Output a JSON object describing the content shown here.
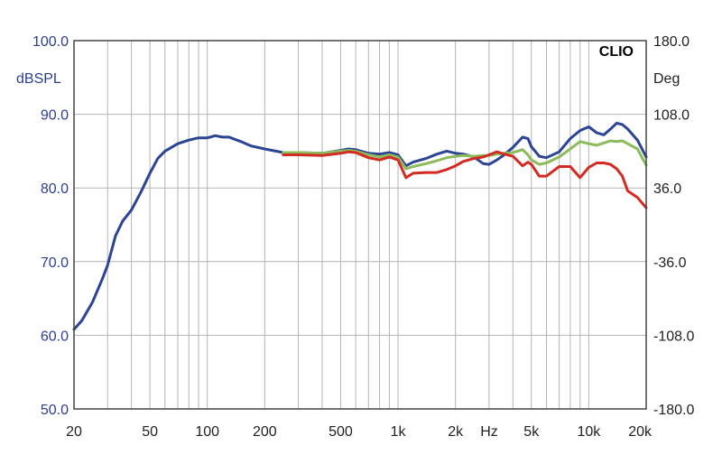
{
  "chart_data": {
    "type": "line",
    "brand": "CLIO",
    "xscale": "log",
    "xlim": [
      20,
      20000
    ],
    "xlabel": "Hz",
    "x_ticks": [
      {
        "value": 20,
        "label": "20"
      },
      {
        "value": 50,
        "label": "50"
      },
      {
        "value": 100,
        "label": "100"
      },
      {
        "value": 200,
        "label": "200"
      },
      {
        "value": 500,
        "label": "500"
      },
      {
        "value": 1000,
        "label": "1k"
      },
      {
        "value": 2000,
        "label": "2k"
      },
      {
        "value": 5000,
        "label": "5k"
      },
      {
        "value": 10000,
        "label": "10k"
      },
      {
        "value": 20000,
        "label": "20k"
      }
    ],
    "ylabel": "dBSPL",
    "ylim": [
      50,
      100
    ],
    "y_ticks": [
      "100.0",
      "90.0",
      "80.0",
      "70.0",
      "60.0",
      "50.0"
    ],
    "y2label": "Deg",
    "y2lim": [
      -180,
      180
    ],
    "y2_ticks": [
      "180.0",
      "108.0",
      "36.0",
      "-36.0",
      "-108.0",
      "-180.0"
    ],
    "grid": true,
    "series": [
      {
        "color": "#2b4494",
        "x": [
          20,
          22,
          25,
          28,
          30,
          33,
          36,
          40,
          45,
          50,
          55,
          60,
          70,
          80,
          90,
          100,
          110,
          120,
          130,
          150,
          170,
          200,
          250,
          300,
          400,
          500,
          550,
          600,
          700,
          800,
          900,
          1000,
          1100,
          1200,
          1400,
          1600,
          1800,
          2000,
          2200,
          2500,
          2800,
          3000,
          3300,
          3600,
          4000,
          4500,
          4800,
          5000,
          5500,
          6000,
          7000,
          8000,
          9000,
          10000,
          11000,
          12000,
          13000,
          14000,
          15000,
          16000,
          18000,
          20000
        ],
        "values": [
          60.8,
          62,
          64.5,
          67.5,
          69.5,
          73.5,
          75.5,
          77,
          79.5,
          82,
          84,
          85,
          86,
          86.5,
          86.8,
          86.8,
          87.1,
          86.9,
          86.9,
          86.3,
          85.7,
          85.3,
          84.8,
          84.8,
          84.7,
          85.1,
          85.3,
          85.2,
          84.7,
          84.6,
          84.8,
          84.5,
          83,
          83.5,
          84,
          84.6,
          85,
          84.7,
          84.6,
          84.2,
          83.3,
          83.2,
          83.8,
          84.5,
          85.5,
          86.9,
          86.7,
          85.6,
          84.3,
          84.1,
          84.9,
          86.7,
          87.8,
          88.3,
          87.5,
          87.2,
          88,
          88.8,
          88.6,
          88,
          86.5,
          84.2
        ]
      },
      {
        "color": "#8cbb5c",
        "x": [
          250,
          300,
          400,
          500,
          550,
          600,
          700,
          800,
          900,
          1000,
          1100,
          1200,
          1400,
          1600,
          1800,
          2000,
          2200,
          2500,
          2800,
          3000,
          3300,
          3600,
          4000,
          4500,
          4800,
          5000,
          5500,
          6000,
          7000,
          8000,
          9000,
          10000,
          11000,
          12000,
          13000,
          14000,
          15000,
          16000,
          18000,
          20000
        ],
        "values": [
          84.8,
          84.8,
          84.7,
          85,
          85.1,
          85,
          84.5,
          84.2,
          84.5,
          84.2,
          82.6,
          82.9,
          83.3,
          83.7,
          84.1,
          84.3,
          84.4,
          84.3,
          84.4,
          84.4,
          84.6,
          84.7,
          84.8,
          85.2,
          84.5,
          83.8,
          83.2,
          83.4,
          84.2,
          85.3,
          86.3,
          86,
          85.8,
          86.1,
          86.4,
          86.3,
          86.4,
          86,
          85.3,
          83.1
        ]
      },
      {
        "color": "#d42a24",
        "x": [
          250,
          300,
          400,
          500,
          550,
          600,
          700,
          800,
          900,
          1000,
          1100,
          1200,
          1400,
          1600,
          1800,
          2000,
          2200,
          2500,
          2800,
          3000,
          3300,
          3600,
          4000,
          4500,
          4800,
          5000,
          5500,
          6000,
          7000,
          8000,
          9000,
          10000,
          11000,
          12000,
          13000,
          14000,
          15000,
          16000,
          18000,
          20000
        ],
        "values": [
          84.5,
          84.5,
          84.4,
          84.7,
          84.9,
          84.8,
          84.1,
          83.8,
          84.2,
          83.8,
          81.4,
          82,
          82.1,
          82.1,
          82.5,
          83,
          83.6,
          84,
          84.2,
          84.5,
          84.9,
          84.6,
          84.3,
          83,
          83.5,
          83.2,
          81.6,
          81.6,
          82.9,
          82.9,
          81.4,
          82.8,
          83.4,
          83.4,
          83.2,
          82.6,
          81.6,
          79.6,
          78.7,
          77.3
        ]
      }
    ]
  }
}
